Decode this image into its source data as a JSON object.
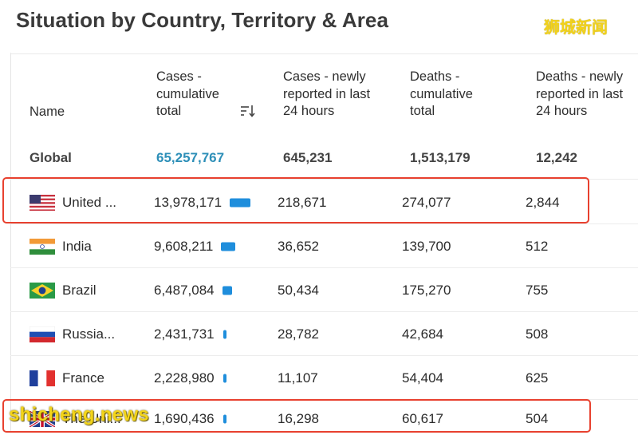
{
  "page": {
    "title": "Situation by Country, Territory & Area",
    "watermark_top": "狮城新闻",
    "watermark_bottom": "shicheng.news"
  },
  "table": {
    "headers": {
      "name": "Name",
      "cases_total": [
        "Cases -",
        "cumulative",
        "total"
      ],
      "cases_new": [
        "Cases - newly",
        "reported in last",
        "24 hours"
      ],
      "deaths_total": [
        "Deaths -",
        "cumulative",
        "total"
      ],
      "deaths_new": [
        "Deaths - newly",
        "reported in last",
        "24 hours"
      ]
    },
    "sort_icon": "sort-descending-icon",
    "global": {
      "name": "Global",
      "cases_total": "65,257,767",
      "cases_new": "645,231",
      "deaths_total": "1,513,179",
      "deaths_new": "12,242"
    },
    "rows": [
      {
        "flag": "us-flag-icon",
        "name": "United ...",
        "cases_total": "13,978,171",
        "cases_new": "218,671",
        "deaths_total": "274,077",
        "deaths_new": "2,844",
        "bar_fraction": 1.0
      },
      {
        "flag": "india-flag-icon",
        "name": "India",
        "cases_total": "9,608,211",
        "cases_new": "36,652",
        "deaths_total": "139,700",
        "deaths_new": "512",
        "bar_fraction": 0.69
      },
      {
        "flag": "brazil-flag-icon",
        "name": "Brazil",
        "cases_total": "6,487,084",
        "cases_new": "50,434",
        "deaths_total": "175,270",
        "deaths_new": "755",
        "bar_fraction": 0.46
      },
      {
        "flag": "russia-flag-icon",
        "name": "Russia...",
        "cases_total": "2,431,731",
        "cases_new": "28,782",
        "deaths_total": "42,684",
        "deaths_new": "508",
        "bar_fraction": 0.17
      },
      {
        "flag": "france-flag-icon",
        "name": "France",
        "cases_total": "2,228,980",
        "cases_new": "11,107",
        "deaths_total": "54,404",
        "deaths_new": "625",
        "bar_fraction": 0.16
      },
      {
        "flag": "uk-flag-icon",
        "name": "The Uni...",
        "cases_total": "1,690,436",
        "cases_new": "16,298",
        "deaths_total": "60,617",
        "deaths_new": "504",
        "bar_fraction": 0.12
      }
    ]
  },
  "colors": {
    "accent": "#2d8fb8",
    "bar": "#1f8edc",
    "highlight": "#e8412f",
    "watermark": "#f3d419"
  }
}
